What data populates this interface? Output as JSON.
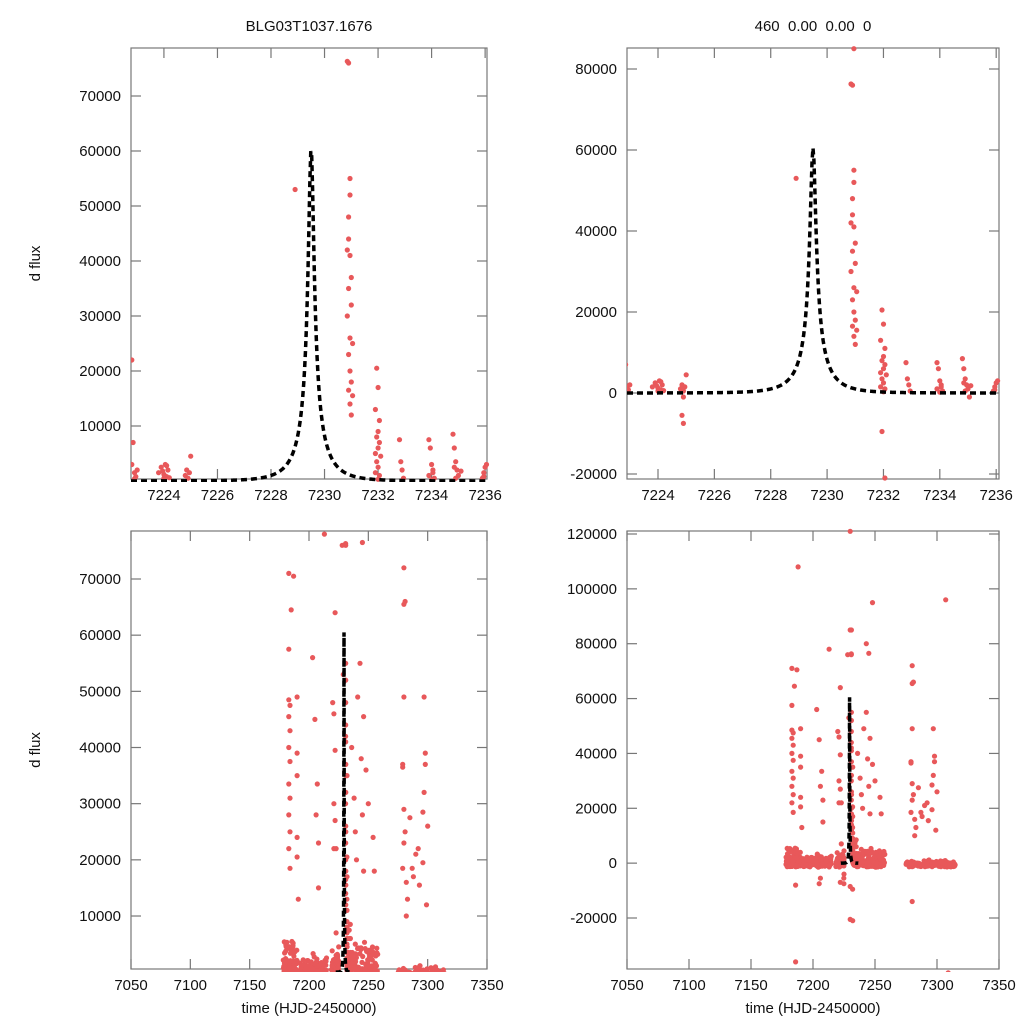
{
  "figure": {
    "title_left": "BLG03T1037.1676",
    "title_right": "460  0.00  0.00  0",
    "point_color": "#e8585a",
    "model_color": "#000000"
  },
  "chart_data": [
    {
      "type": "scatter",
      "panel": "top-left",
      "title": "BLG03T1037.1676",
      "xlabel": "",
      "ylabel": "d flux",
      "xlim": [
        7222.77,
        7236.07
      ],
      "ylim": [
        363,
        78727
      ],
      "xticks": [
        7224,
        7226,
        7228,
        7230,
        7232,
        7234,
        7236
      ],
      "yticks": [
        10000,
        20000,
        30000,
        40000,
        50000,
        60000,
        70000
      ],
      "grid": false,
      "model": {
        "name": "microlensing model",
        "t0": 7229.5,
        "peak": 60500,
        "tE": 1.05,
        "u0": 0.1,
        "style": "dashed"
      },
      "series": [
        {
          "name": "observations"
        }
      ]
    },
    {
      "type": "scatter",
      "panel": "top-right",
      "title": "460  0.00  0.00  0",
      "xlabel": "",
      "ylabel": "",
      "xlim": [
        7222.9,
        7236.1
      ],
      "ylim": [
        -21235,
        85185
      ],
      "xticks": [
        7224,
        7226,
        7228,
        7230,
        7232,
        7234,
        7236
      ],
      "yticks": [
        -20000,
        0,
        20000,
        40000,
        60000,
        80000
      ],
      "grid": false,
      "model": {
        "name": "microlensing model",
        "t0": 7229.5,
        "peak": 60500,
        "tE": 1.05,
        "u0": 0.1,
        "style": "dashed"
      },
      "series": [
        {
          "name": "observations"
        }
      ]
    },
    {
      "type": "scatter",
      "panel": "bottom-left",
      "title": "",
      "xlabel": "time (HJD-2450000)",
      "ylabel": "d flux",
      "xlim": [
        7050,
        7350
      ],
      "ylim": [
        566,
        78546
      ],
      "xticks": [
        7050,
        7100,
        7150,
        7200,
        7250,
        7300,
        7350
      ],
      "yticks": [
        10000,
        20000,
        30000,
        40000,
        50000,
        60000,
        70000
      ],
      "grid": false,
      "model": {
        "name": "microlensing model",
        "t0": 7229.5,
        "peak": 60500,
        "tE": 1.05,
        "u0": 0.1,
        "style": "dashed"
      },
      "series": [
        {
          "name": "observations"
        }
      ]
    },
    {
      "type": "scatter",
      "panel": "bottom-right",
      "title": "",
      "xlabel": "time (HJD-2450000)",
      "ylabel": "",
      "xlim": [
        7050,
        7350
      ],
      "ylim": [
        -38594,
        121094
      ],
      "xticks": [
        7050,
        7100,
        7150,
        7200,
        7250,
        7300,
        7350
      ],
      "yticks": [
        -20000,
        0,
        20000,
        40000,
        60000,
        80000,
        100000,
        120000
      ],
      "grid": false,
      "model": {
        "name": "microlensing model",
        "t0": 7229.5,
        "peak": 60500,
        "tE": 1.05,
        "u0": 0.1,
        "style": "dashed"
      },
      "series": [
        {
          "name": "observations"
        }
      ]
    }
  ],
  "observations": {
    "zoom_points": [
      [
        7222.8,
        22000
      ],
      [
        7222.85,
        7000
      ],
      [
        7222.8,
        3000
      ],
      [
        7222.9,
        1500
      ],
      [
        7222.95,
        800
      ],
      [
        7223.0,
        2000
      ],
      [
        7222.9,
        400
      ],
      [
        7223.8,
        1500
      ],
      [
        7223.9,
        2500
      ],
      [
        7224.0,
        1200
      ],
      [
        7224.05,
        3000
      ],
      [
        7224.1,
        800
      ],
      [
        7224.0,
        500
      ],
      [
        7224.15,
        2000
      ],
      [
        7223.95,
        1800
      ],
      [
        7224.2,
        600
      ],
      [
        7224.1,
        2800
      ],
      [
        7224.8,
        1000
      ],
      [
        7224.85,
        2000
      ],
      [
        7224.9,
        500
      ],
      [
        7224.95,
        1500
      ],
      [
        7225.0,
        4500
      ],
      [
        7224.9,
        -1000
      ],
      [
        7224.85,
        -5500
      ],
      [
        7224.9,
        -7500
      ],
      [
        7228.9,
        53000
      ],
      [
        7230.85,
        76300
      ],
      [
        7230.9,
        76000
      ],
      [
        7230.95,
        85000
      ],
      [
        7230.95,
        55000
      ],
      [
        7230.95,
        52000
      ],
      [
        7230.9,
        48000
      ],
      [
        7230.9,
        44000
      ],
      [
        7230.85,
        42000
      ],
      [
        7230.95,
        41000
      ],
      [
        7231.0,
        37000
      ],
      [
        7230.9,
        35000
      ],
      [
        7231.0,
        32000
      ],
      [
        7230.85,
        30000
      ],
      [
        7230.95,
        26000
      ],
      [
        7231.05,
        25000
      ],
      [
        7230.9,
        23000
      ],
      [
        7230.95,
        20000
      ],
      [
        7231.0,
        18000
      ],
      [
        7230.9,
        16500
      ],
      [
        7231.05,
        15500
      ],
      [
        7230.95,
        14000
      ],
      [
        7231.0,
        12000
      ],
      [
        7231.95,
        20500
      ],
      [
        7232.0,
        17000
      ],
      [
        7231.9,
        13000
      ],
      [
        7232.05,
        11000
      ],
      [
        7232.0,
        9000
      ],
      [
        7231.95,
        8000
      ],
      [
        7232.05,
        7000
      ],
      [
        7232.0,
        6000
      ],
      [
        7231.9,
        5000
      ],
      [
        7232.1,
        4500
      ],
      [
        7231.95,
        3500
      ],
      [
        7232.0,
        2500
      ],
      [
        7231.9,
        1500
      ],
      [
        7232.05,
        1000
      ],
      [
        7232.0,
        300
      ],
      [
        7231.95,
        -9500
      ],
      [
        7232.05,
        -21000
      ],
      [
        7232.8,
        7500
      ],
      [
        7232.85,
        3500
      ],
      [
        7232.9,
        2000
      ],
      [
        7232.95,
        500
      ],
      [
        7233.9,
        7500
      ],
      [
        7233.95,
        6000
      ],
      [
        7234.0,
        3000
      ],
      [
        7234.05,
        2000
      ],
      [
        7233.9,
        1000
      ],
      [
        7234.1,
        500
      ],
      [
        7234.0,
        200
      ],
      [
        7234.05,
        1500
      ],
      [
        7234.8,
        8500
      ],
      [
        7234.85,
        6000
      ],
      [
        7234.9,
        3500
      ],
      [
        7234.95,
        2000
      ],
      [
        7235.0,
        1000
      ],
      [
        7234.9,
        500
      ],
      [
        7235.05,
        -1000
      ],
      [
        7235.1,
        1800
      ],
      [
        7234.85,
        2500
      ],
      [
        7235.9,
        500
      ],
      [
        7235.95,
        1500
      ],
      [
        7236.0,
        2500
      ],
      [
        7236.05,
        3000
      ],
      [
        7235.95,
        800
      ]
    ],
    "seasons": [
      {
        "t": [
          7178,
          7190
        ],
        "dense_max": 8000,
        "count": 120
      },
      {
        "t": [
          7192,
          7215
        ],
        "dense_max": 4500,
        "count": 140
      },
      {
        "t": [
          7218,
          7224
        ],
        "dense_max": 5000,
        "count": 40
      },
      {
        "t": [
          7232,
          7258
        ],
        "dense_max": 7000,
        "count": 170
      },
      {
        "t": [
          7275,
          7315
        ],
        "dense_max": 2000,
        "count": 150
      }
    ],
    "sparse_points": [
      [
        7183,
        71000
      ],
      [
        7187,
        70500
      ],
      [
        7185,
        64500
      ],
      [
        7183,
        57500
      ],
      [
        7183,
        48500
      ],
      [
        7184,
        47500
      ],
      [
        7183,
        45500
      ],
      [
        7184,
        43000
      ],
      [
        7183,
        40000
      ],
      [
        7184,
        37500
      ],
      [
        7183,
        33500
      ],
      [
        7184,
        31000
      ],
      [
        7183,
        28000
      ],
      [
        7184,
        25000
      ],
      [
        7183,
        22000
      ],
      [
        7184,
        18500
      ],
      [
        7190,
        49000
      ],
      [
        7190,
        39000
      ],
      [
        7190,
        35000
      ],
      [
        7190,
        24000
      ],
      [
        7190,
        20500
      ],
      [
        7191,
        13000
      ],
      [
        7203,
        56000
      ],
      [
        7205,
        45000
      ],
      [
        7207,
        33500
      ],
      [
        7206,
        28000
      ],
      [
        7208,
        23000
      ],
      [
        7208,
        15000
      ],
      [
        7213,
        78000
      ],
      [
        7222,
        64000
      ],
      [
        7220,
        48000
      ],
      [
        7221,
        46000
      ],
      [
        7222,
        39500
      ],
      [
        7221,
        30000
      ],
      [
        7222,
        27000
      ],
      [
        7221,
        22000
      ],
      [
        7228,
        76000
      ],
      [
        7245,
        76500
      ],
      [
        7232,
        35000
      ],
      [
        7236,
        40000
      ],
      [
        7238,
        31000
      ],
      [
        7239,
        25000
      ],
      [
        7240,
        20000
      ],
      [
        7241,
        49000
      ],
      [
        7243,
        55000
      ],
      [
        7244,
        38000
      ],
      [
        7245,
        28000
      ],
      [
        7246,
        18000
      ],
      [
        7248,
        36000
      ],
      [
        7246,
        45500
      ],
      [
        7250,
        30000
      ],
      [
        7254,
        24000
      ],
      [
        7255,
        18000
      ],
      [
        7280,
        72000
      ],
      [
        7281,
        66000
      ],
      [
        7280,
        65500
      ],
      [
        7280,
        49000
      ],
      [
        7279,
        37000
      ],
      [
        7279,
        36500
      ],
      [
        7280,
        29000
      ],
      [
        7281,
        25000
      ],
      [
        7280,
        23000
      ],
      [
        7279,
        18500
      ],
      [
        7282,
        16000
      ],
      [
        7283,
        13000
      ],
      [
        7282,
        10000
      ],
      [
        7297,
        49000
      ],
      [
        7298,
        39000
      ],
      [
        7298,
        37000
      ],
      [
        7297,
        32000
      ],
      [
        7296,
        28500
      ],
      [
        7300,
        26000
      ],
      [
        7296,
        19500
      ],
      [
        7293,
        15500
      ],
      [
        7299,
        12000
      ],
      [
        7287,
        18500
      ],
      [
        7288,
        17000
      ],
      [
        7290,
        21000
      ],
      [
        7292,
        22000
      ],
      [
        7285,
        27500
      ]
    ],
    "extreme_points_wide": [
      [
        7188,
        108000
      ],
      [
        7230,
        121000
      ],
      [
        7248,
        95000
      ],
      [
        7230,
        85000
      ],
      [
        7243,
        80000
      ],
      [
        7307,
        96000
      ],
      [
        7186,
        -8000
      ],
      [
        7205,
        -7500
      ],
      [
        7222,
        -7000
      ],
      [
        7230,
        -8500
      ],
      [
        7230,
        -20500
      ],
      [
        7280,
        -14000
      ],
      [
        7186,
        -36000
      ],
      [
        7309,
        -40000
      ],
      [
        7206,
        -5500
      ],
      [
        7225,
        -4000
      ]
    ]
  }
}
